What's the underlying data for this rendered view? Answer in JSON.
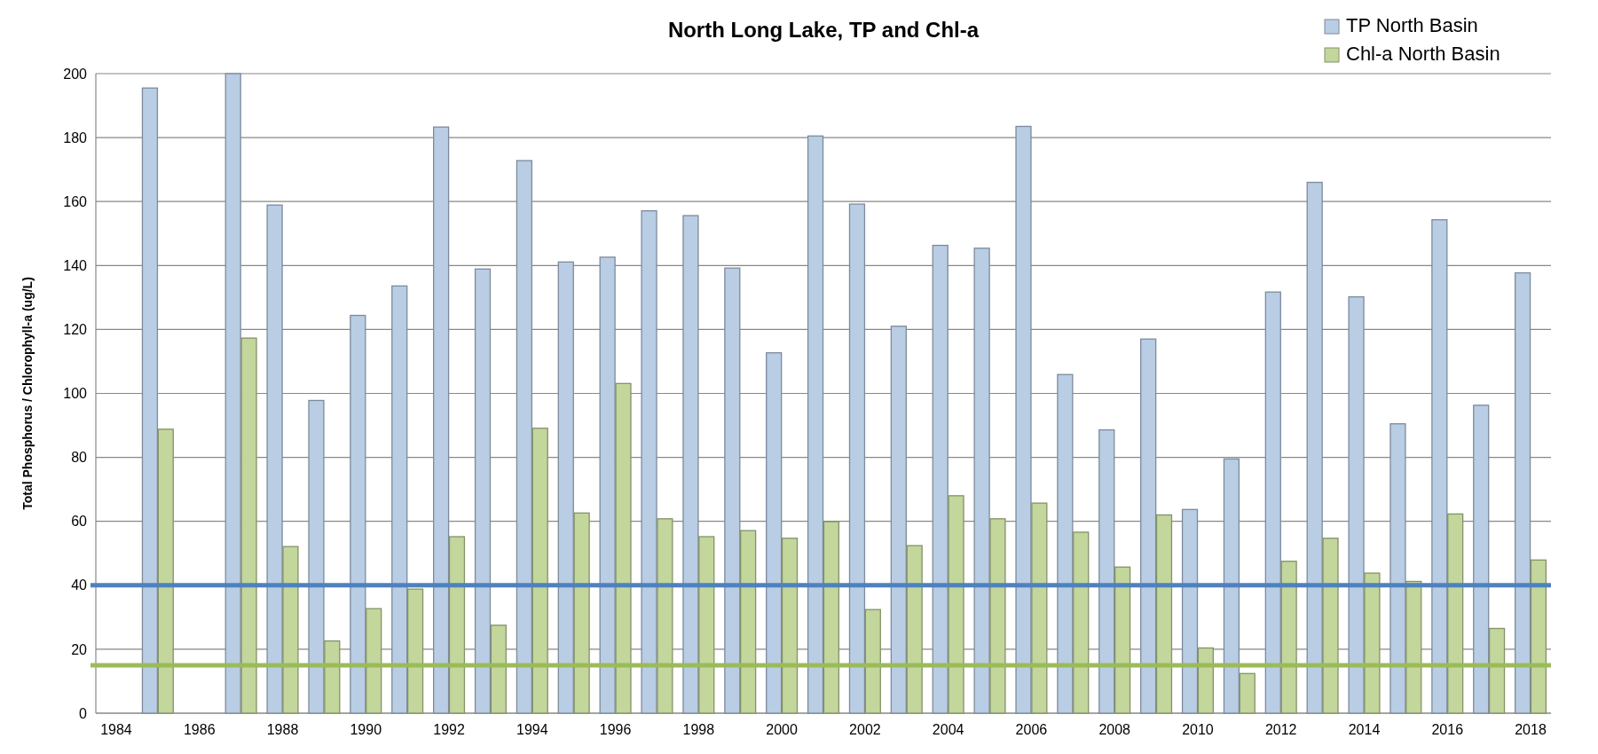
{
  "chart_data": {
    "type": "bar",
    "title": "North Long Lake, TP and Chl-a",
    "ylabel": "Total Phosphorus / Chlorophyll-a  (ug/L)",
    "categories": [
      "1984",
      null,
      "1986",
      null,
      "1988",
      null,
      "1990",
      null,
      "1992",
      null,
      "1994",
      null,
      "1996",
      null,
      "1998",
      null,
      "2000",
      null,
      "2002",
      null,
      "2004",
      null,
      "2006",
      null,
      "2008",
      null,
      "2010",
      null,
      "2012",
      null,
      "2014",
      null,
      "2016",
      null,
      "2018"
    ],
    "series": [
      {
        "name": "TP North Basin",
        "color": "#b9cde5",
        "values": [
          null,
          195.5,
          null,
          200,
          158.9,
          97.8,
          124.4,
          133.6,
          183.3,
          138.9,
          172.8,
          141.1,
          142.6,
          157.1,
          155.6,
          139.2,
          112.7,
          180.5,
          159.2,
          121.0,
          146.3,
          145.4,
          183.5,
          105.9,
          88.6,
          117.0,
          63.7,
          79.5,
          131.7,
          166.0,
          130.2,
          90.5,
          154.3,
          96.3,
          137.7
        ]
      },
      {
        "name": "Chl-a North Basin",
        "color": "#c3d69b",
        "values": [
          null,
          88.8,
          null,
          117.3,
          52.1,
          22.6,
          32.7,
          38.8,
          55.2,
          27.5,
          89.1,
          62.6,
          103.1,
          60.8,
          55.2,
          57.1,
          54.7,
          59.9,
          32.4,
          52.4,
          68.0,
          60.8,
          65.7,
          56.6,
          45.7,
          62.0,
          20.4,
          12.4,
          47.5,
          54.7,
          43.8,
          41.2,
          62.3,
          26.5,
          47.9
        ]
      }
    ],
    "ylim": [
      0,
      200
    ],
    "yticks": [
      0,
      20,
      40,
      60,
      80,
      100,
      120,
      140,
      160,
      180,
      200
    ],
    "grid": "y",
    "legend": "top right",
    "ref_lines": [
      {
        "axis": "y",
        "value": 40,
        "color": "#4f81bd"
      },
      {
        "axis": "y",
        "value": 15,
        "color": "#9bbb59"
      }
    ]
  }
}
